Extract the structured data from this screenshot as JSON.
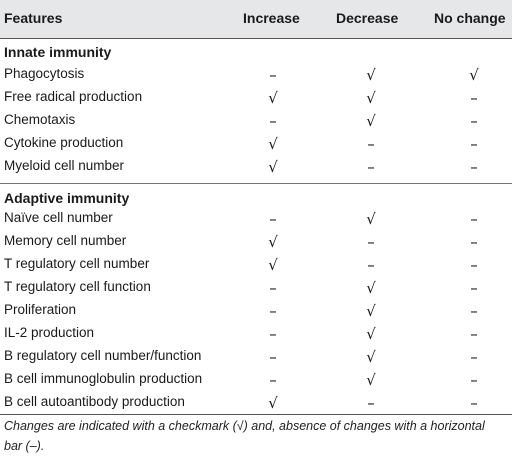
{
  "header": {
    "features": "Features",
    "increase": "Increase",
    "decrease": "Decrease",
    "no_change": "No change"
  },
  "sections": [
    {
      "title": "Innate immunity",
      "rows": [
        {
          "feature": "Phagocytosis",
          "increase": "–",
          "decrease": "√",
          "no_change": "√"
        },
        {
          "feature": "Free radical production",
          "increase": "√",
          "decrease": "√",
          "no_change": "–"
        },
        {
          "feature": "Chemotaxis",
          "increase": "–",
          "decrease": "√",
          "no_change": "–"
        },
        {
          "feature": "Cytokine production",
          "increase": "√",
          "decrease": "–",
          "no_change": "–"
        },
        {
          "feature": "Myeloid cell number",
          "increase": "√",
          "decrease": "–",
          "no_change": "–"
        }
      ]
    },
    {
      "title": "Adaptive immunity",
      "rows": [
        {
          "feature": "Naïve cell number",
          "increase": "–",
          "decrease": "√",
          "no_change": "–"
        },
        {
          "feature": "Memory cell number",
          "increase": "√",
          "decrease": "–",
          "no_change": "–"
        },
        {
          "feature": "T regulatory cell number",
          "increase": "√",
          "decrease": "–",
          "no_change": "–"
        },
        {
          "feature": "T regulatory cell function",
          "increase": "–",
          "decrease": "√",
          "no_change": "–"
        },
        {
          "feature": "Proliferation",
          "increase": "–",
          "decrease": "√",
          "no_change": "–"
        },
        {
          "feature": "IL-2 production",
          "increase": "–",
          "decrease": "√",
          "no_change": "–"
        },
        {
          "feature": "B regulatory cell number/function",
          "increase": "–",
          "decrease": "√",
          "no_change": "–"
        },
        {
          "feature": "B cell immunoglobulin production",
          "increase": "–",
          "decrease": "√",
          "no_change": "–"
        },
        {
          "feature": "B cell autoantibody production",
          "increase": "√",
          "decrease": "–",
          "no_change": "–"
        }
      ]
    }
  ],
  "footnote": "Changes are indicated with a checkmark (√) and, absence of changes with a horizontal bar (–)."
}
